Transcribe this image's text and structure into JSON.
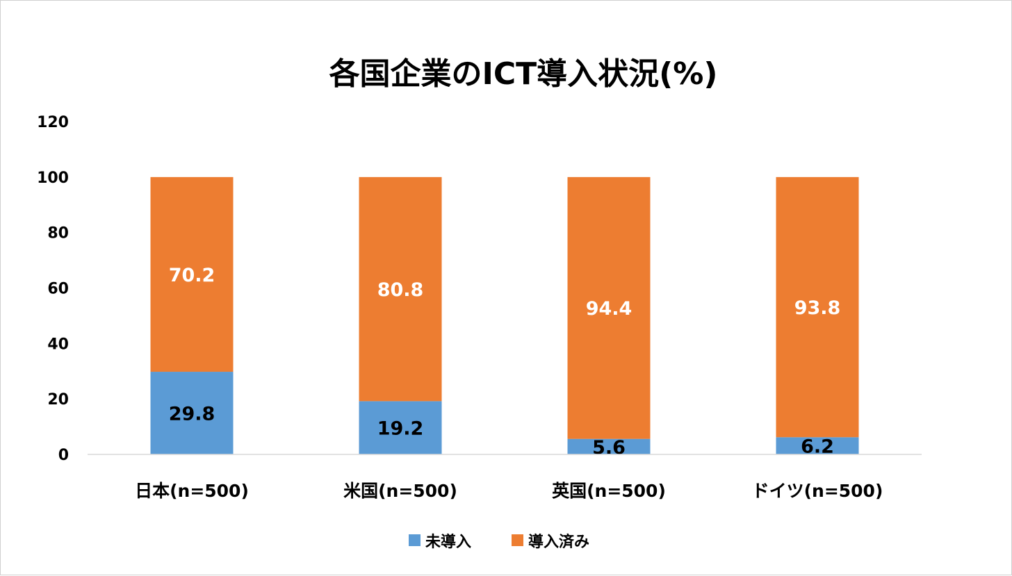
{
  "chart_data": {
    "type": "bar",
    "stacked": true,
    "title": "各国企業のICT導入状況(%)",
    "categories": [
      "日本(n=500)",
      "米国(n=500)",
      "英国(n=500)",
      "ドイツ(n=500)"
    ],
    "series": [
      {
        "name": "未導入",
        "values": [
          29.8,
          19.2,
          5.6,
          6.2
        ],
        "color": "#5B9BD5",
        "label_color": "#000000"
      },
      {
        "name": "導入済み",
        "values": [
          70.2,
          80.8,
          94.4,
          93.8
        ],
        "color": "#ED7D31",
        "label_color": "#FFFFFF"
      }
    ],
    "yticks": [
      "0",
      "20",
      "40",
      "60",
      "80",
      "100",
      "120"
    ],
    "ylim": [
      0,
      120
    ],
    "grid": false,
    "legend": "bottom"
  }
}
